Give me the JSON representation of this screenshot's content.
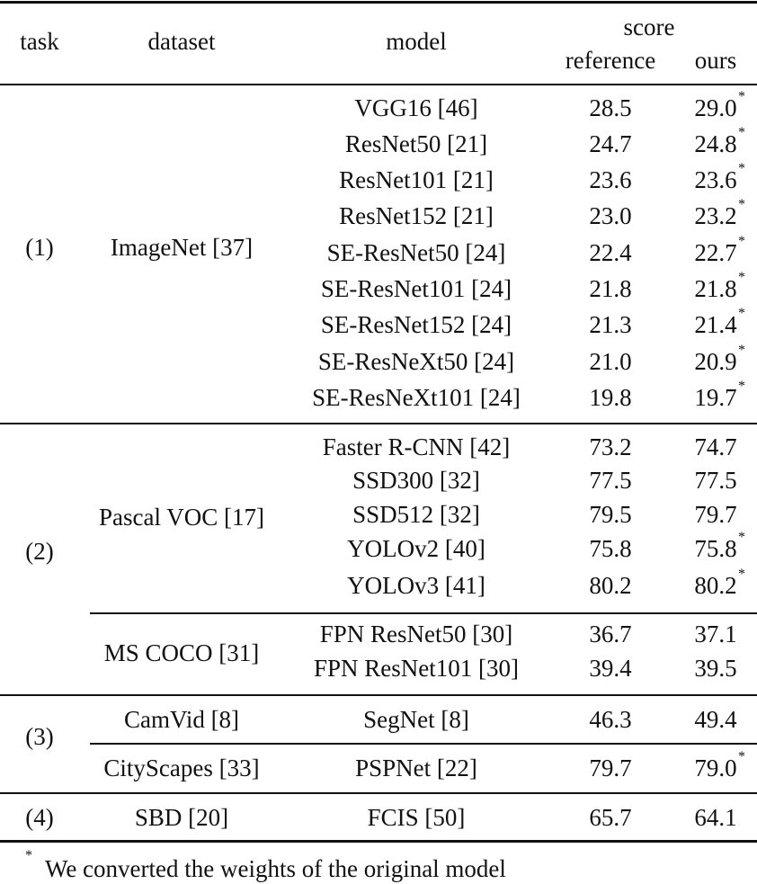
{
  "table": {
    "headers": {
      "task": "task",
      "dataset": "dataset",
      "model": "model",
      "score": "score",
      "reference": "reference",
      "ours": "ours"
    },
    "groups": [
      {
        "task": "(1)",
        "datasets": [
          {
            "name": "ImageNet [37]",
            "rows": [
              {
                "model": "VGG16 [46]",
                "reference": "28.5",
                "ours": "29.0",
                "converted": true
              },
              {
                "model": "ResNet50 [21]",
                "reference": "24.7",
                "ours": "24.8",
                "converted": true
              },
              {
                "model": "ResNet101 [21]",
                "reference": "23.6",
                "ours": "23.6",
                "converted": true
              },
              {
                "model": "ResNet152 [21]",
                "reference": "23.0",
                "ours": "23.2",
                "converted": true
              },
              {
                "model": "SE-ResNet50 [24]",
                "reference": "22.4",
                "ours": "22.7",
                "converted": true
              },
              {
                "model": "SE-ResNet101 [24]",
                "reference": "21.8",
                "ours": "21.8",
                "converted": true
              },
              {
                "model": "SE-ResNet152 [24]",
                "reference": "21.3",
                "ours": "21.4",
                "converted": true
              },
              {
                "model": "SE-ResNeXt50 [24]",
                "reference": "21.0",
                "ours": "20.9",
                "converted": true
              },
              {
                "model": "SE-ResNeXt101 [24]",
                "reference": "19.8",
                "ours": "19.7",
                "converted": true
              }
            ]
          }
        ]
      },
      {
        "task": "(2)",
        "datasets": [
          {
            "name": "Pascal VOC [17]",
            "rows": [
              {
                "model": "Faster R-CNN [42]",
                "reference": "73.2",
                "ours": "74.7",
                "converted": false
              },
              {
                "model": "SSD300 [32]",
                "reference": "77.5",
                "ours": "77.5",
                "converted": false
              },
              {
                "model": "SSD512 [32]",
                "reference": "79.5",
                "ours": "79.7",
                "converted": false
              },
              {
                "model": "YOLOv2 [40]",
                "reference": "75.8",
                "ours": "75.8",
                "converted": true
              },
              {
                "model": "YOLOv3 [41]",
                "reference": "80.2",
                "ours": "80.2",
                "converted": true
              }
            ]
          },
          {
            "name": "MS COCO [31]",
            "rows": [
              {
                "model": "FPN ResNet50 [30]",
                "reference": "36.7",
                "ours": "37.1",
                "converted": false
              },
              {
                "model": "FPN ResNet101 [30]",
                "reference": "39.4",
                "ours": "39.5",
                "converted": false
              }
            ]
          }
        ]
      },
      {
        "task": "(3)",
        "datasets": [
          {
            "name": "CamVid [8]",
            "rows": [
              {
                "model": "SegNet [8]",
                "reference": "46.3",
                "ours": "49.4",
                "converted": false
              }
            ]
          },
          {
            "name": "CityScapes [33]",
            "rows": [
              {
                "model": "PSPNet [22]",
                "reference": "79.7",
                "ours": "79.0",
                "converted": true
              }
            ]
          }
        ]
      },
      {
        "task": "(4)",
        "datasets": [
          {
            "name": "SBD [20]",
            "rows": [
              {
                "model": "FCIS [50]",
                "reference": "65.7",
                "ours": "64.1",
                "converted": false
              }
            ]
          }
        ]
      }
    ],
    "footnote": {
      "marker": "*",
      "text": "We converted the weights of the original model"
    }
  }
}
